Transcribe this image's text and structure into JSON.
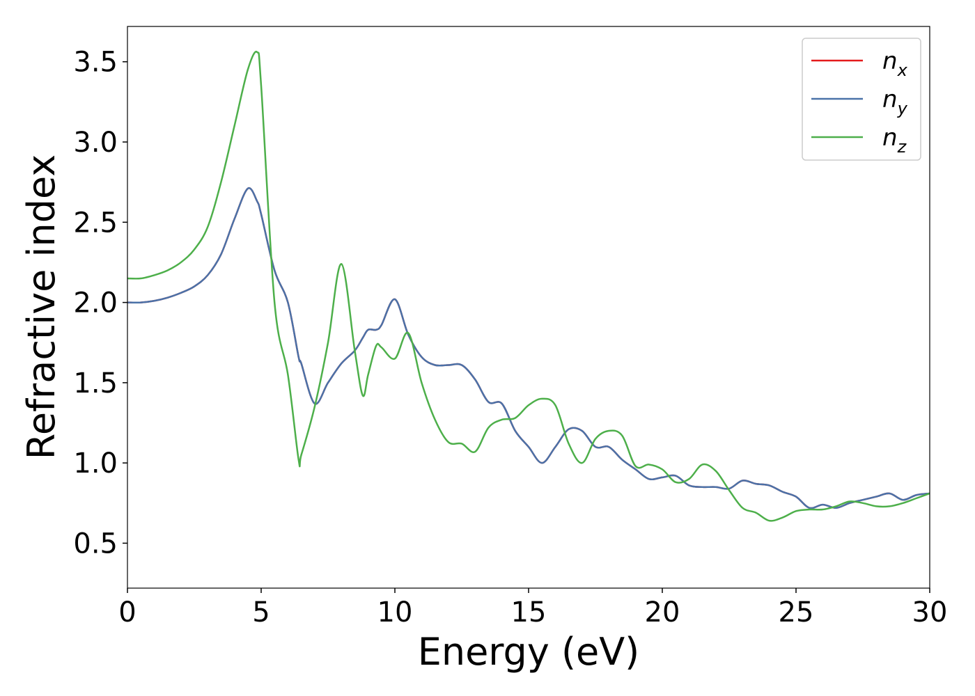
{
  "chart_data": {
    "type": "line",
    "xlabel": "Energy (eV)",
    "ylabel": "Refractive index",
    "x": [
      0,
      0.5,
      1,
      1.5,
      2,
      2.5,
      3,
      3.5,
      4,
      4.5,
      4.85,
      5,
      5.5,
      6,
      6.4,
      6.5,
      7,
      7.5,
      8,
      8.5,
      8.8,
      9,
      9.3,
      9.5,
      10,
      10.5,
      11,
      11.5,
      12,
      12.5,
      13,
      13.5,
      14,
      14.5,
      15,
      15.5,
      16,
      16.5,
      17,
      17.5,
      18,
      18.5,
      19,
      19.5,
      20,
      20.5,
      21,
      21.5,
      22,
      22.5,
      23,
      23.5,
      24,
      24.5,
      25,
      25.5,
      26,
      26.5,
      27,
      27.5,
      28,
      28.5,
      29,
      29.5,
      30
    ],
    "series": [
      {
        "name": "nx",
        "color": "#e41a1c",
        "values": [
          2.0,
          2.0,
          2.01,
          2.03,
          2.06,
          2.1,
          2.17,
          2.3,
          2.52,
          2.71,
          2.63,
          2.55,
          2.2,
          2.0,
          1.66,
          1.62,
          1.37,
          1.5,
          1.62,
          1.7,
          1.78,
          1.83,
          1.83,
          1.86,
          2.02,
          1.8,
          1.66,
          1.61,
          1.61,
          1.61,
          1.52,
          1.38,
          1.37,
          1.2,
          1.1,
          1.0,
          1.1,
          1.21,
          1.2,
          1.1,
          1.1,
          1.02,
          0.96,
          0.9,
          0.91,
          0.92,
          0.86,
          0.85,
          0.85,
          0.84,
          0.89,
          0.87,
          0.86,
          0.82,
          0.79,
          0.72,
          0.74,
          0.72,
          0.75,
          0.77,
          0.79,
          0.81,
          0.77,
          0.8,
          0.81
        ]
      },
      {
        "name": "ny",
        "color": "#4a72a8",
        "values": [
          2.0,
          2.0,
          2.01,
          2.03,
          2.06,
          2.1,
          2.17,
          2.3,
          2.52,
          2.71,
          2.63,
          2.55,
          2.2,
          2.0,
          1.66,
          1.62,
          1.37,
          1.5,
          1.62,
          1.7,
          1.78,
          1.83,
          1.83,
          1.86,
          2.02,
          1.8,
          1.66,
          1.61,
          1.61,
          1.61,
          1.52,
          1.38,
          1.37,
          1.2,
          1.1,
          1.0,
          1.1,
          1.21,
          1.2,
          1.1,
          1.1,
          1.02,
          0.96,
          0.9,
          0.91,
          0.92,
          0.86,
          0.85,
          0.85,
          0.84,
          0.89,
          0.87,
          0.86,
          0.82,
          0.79,
          0.72,
          0.74,
          0.72,
          0.75,
          0.77,
          0.79,
          0.81,
          0.77,
          0.8,
          0.81
        ]
      },
      {
        "name": "nz",
        "color": "#4daf4a",
        "values": [
          2.15,
          2.15,
          2.17,
          2.2,
          2.25,
          2.33,
          2.47,
          2.75,
          3.1,
          3.45,
          3.56,
          3.35,
          2.0,
          1.55,
          1.02,
          1.05,
          1.35,
          1.75,
          2.24,
          1.7,
          1.42,
          1.55,
          1.73,
          1.72,
          1.65,
          1.81,
          1.5,
          1.27,
          1.13,
          1.12,
          1.07,
          1.22,
          1.27,
          1.28,
          1.36,
          1.4,
          1.36,
          1.12,
          1.0,
          1.15,
          1.2,
          1.17,
          0.98,
          0.99,
          0.96,
          0.88,
          0.9,
          0.99,
          0.95,
          0.83,
          0.72,
          0.69,
          0.64,
          0.66,
          0.7,
          0.71,
          0.71,
          0.73,
          0.76,
          0.75,
          0.73,
          0.73,
          0.75,
          0.78,
          0.81
        ]
      }
    ],
    "xlim": [
      0,
      30
    ],
    "xticks": [
      0,
      5,
      10,
      15,
      20,
      25,
      30
    ],
    "ylim": [
      0.22,
      3.72
    ],
    "yticks": [
      0.5,
      1.0,
      1.5,
      2.0,
      2.5,
      3.0,
      3.5
    ],
    "legend": "upper right",
    "grid": false
  }
}
